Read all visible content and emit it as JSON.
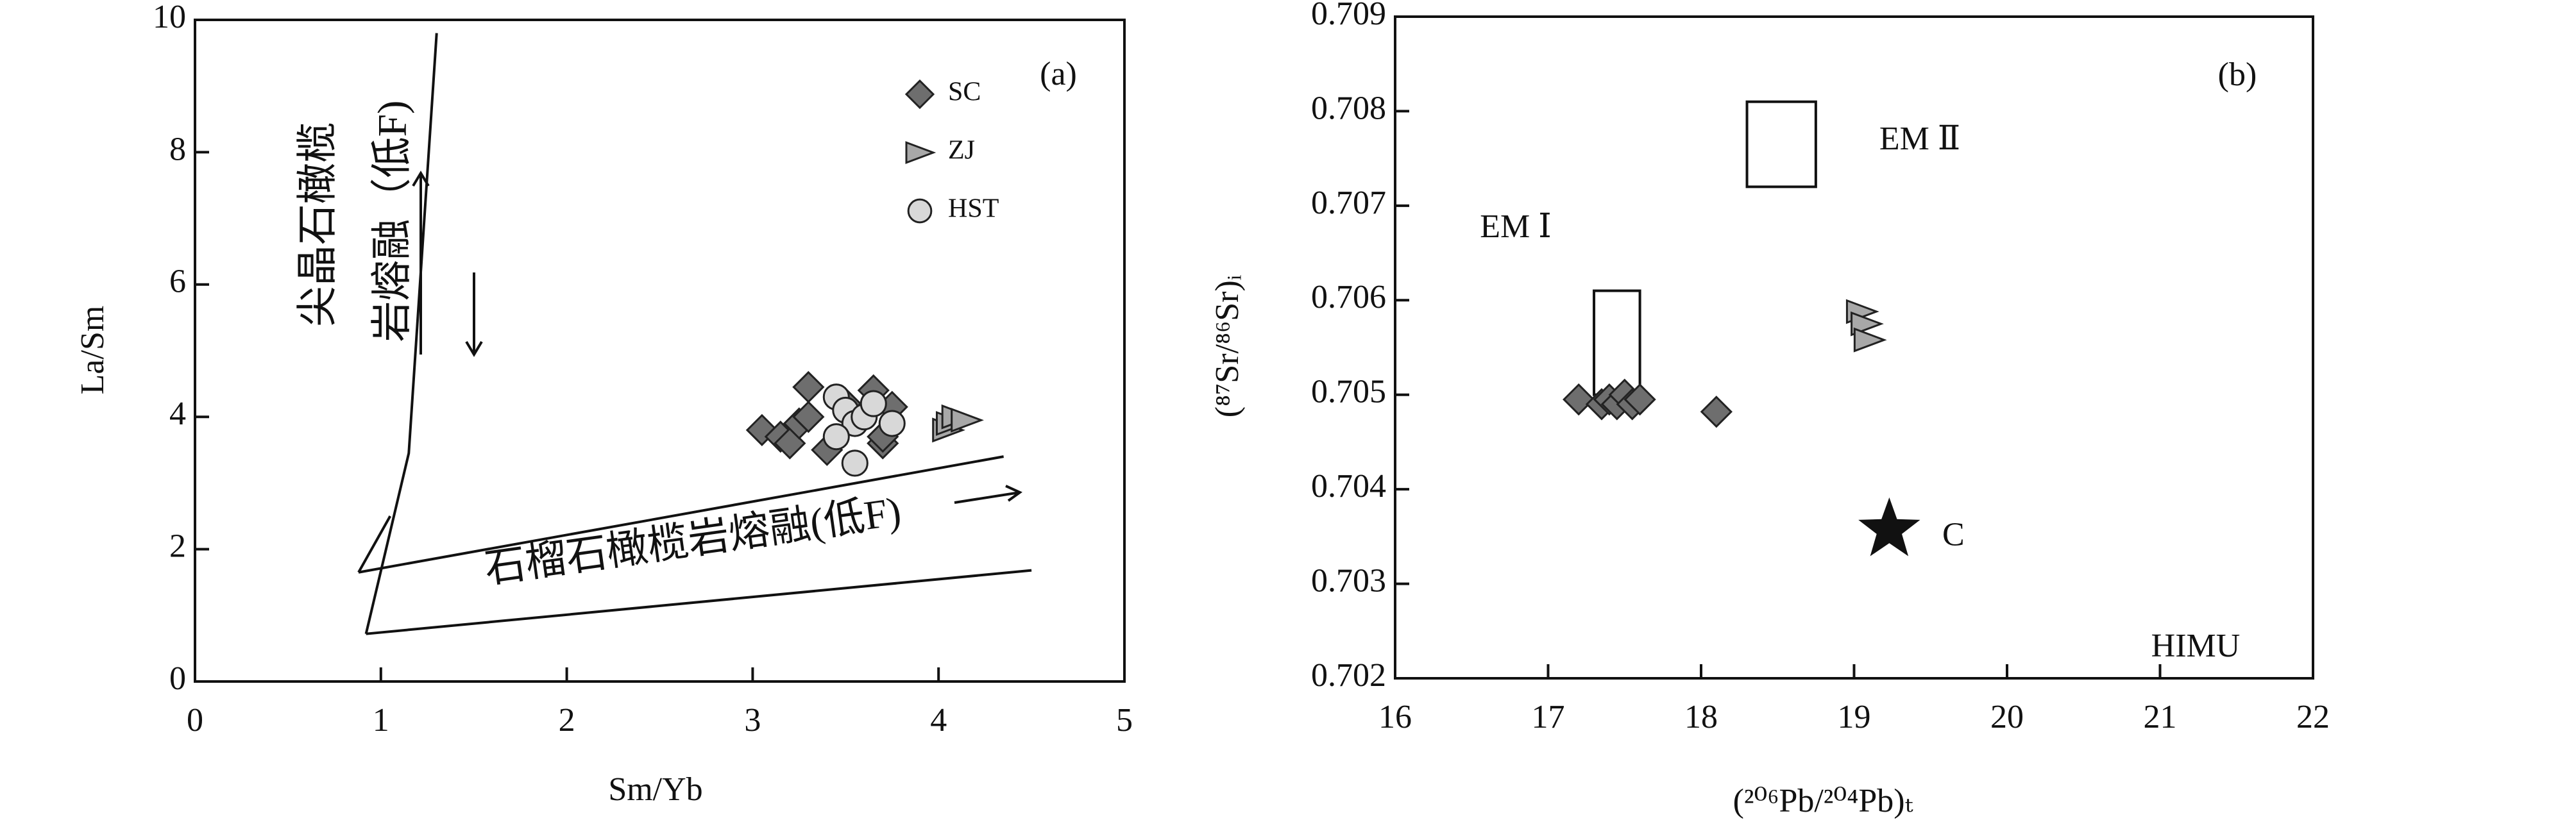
{
  "chart_data": [
    {
      "type": "scatter",
      "panel": "(a)",
      "x_label": "Sm/Yb",
      "y_label": "La/Sm",
      "xlim": [
        0,
        5
      ],
      "ylim": [
        0,
        10
      ],
      "xticks": [
        0,
        1,
        2,
        3,
        4,
        5
      ],
      "yticks": [
        0,
        2,
        4,
        6,
        8,
        10
      ],
      "series": [
        {
          "name": "SC",
          "color": "#6e6e6e",
          "marker": "diamond",
          "x": [
            3.05,
            3.15,
            3.2,
            3.25,
            3.3,
            3.3,
            3.4,
            3.5,
            3.65,
            3.7,
            3.75,
            3.7
          ],
          "values": [
            3.8,
            3.7,
            3.6,
            3.9,
            4.0,
            4.45,
            3.5,
            4.2,
            4.4,
            3.6,
            4.15,
            3.7
          ]
        },
        {
          "name": "ZJ",
          "color": "#a8a8a8",
          "marker": "triangle",
          "x": [
            4.05,
            4.07,
            4.1,
            4.15
          ],
          "values": [
            3.8,
            3.9,
            4.0,
            3.95
          ]
        },
        {
          "name": "HST",
          "color": "#d8d8d8",
          "marker": "circle",
          "x": [
            3.45,
            3.5,
            3.55,
            3.6,
            3.65,
            3.75,
            3.55,
            3.45
          ],
          "values": [
            4.3,
            4.1,
            3.9,
            4.0,
            4.2,
            3.9,
            3.3,
            3.7
          ]
        }
      ],
      "lines": [
        {
          "x": [
            0.88,
            4.35
          ],
          "y": [
            1.65,
            3.4
          ]
        },
        {
          "x": [
            0.92,
            4.5
          ],
          "y": [
            0.72,
            1.68
          ]
        },
        {
          "x": [
            0.92,
            1.15,
            1.3
          ],
          "y": [
            0.72,
            3.45,
            9.8
          ]
        },
        {
          "x": [
            0.88,
            1.05
          ],
          "y": [
            1.65,
            2.5
          ]
        }
      ],
      "annotations": [
        "尖晶石橄榄",
        "岩熔融（低F)",
        "石榴石橄榄岩熔融(低F)"
      ],
      "legend": "top-right"
    },
    {
      "type": "scatter",
      "panel": "(b)",
      "x_label": "(²⁰⁶Pb/²⁰⁴Pb)ₜ",
      "y_label": "(⁸⁷Sr/⁸⁶Sr)ᵢ",
      "xlim": [
        16,
        22
      ],
      "ylim": [
        0.702,
        0.709
      ],
      "xticks": [
        16,
        17,
        18,
        19,
        20,
        21,
        22
      ],
      "yticks": [
        0.702,
        0.703,
        0.704,
        0.705,
        0.706,
        0.707,
        0.708,
        0.709
      ],
      "series": [
        {
          "name": "SC",
          "color": "#6e6e6e",
          "marker": "diamond",
          "x": [
            17.2,
            17.35,
            17.4,
            17.45,
            17.5,
            17.55,
            17.6,
            18.1
          ],
          "values": [
            0.70495,
            0.7049,
            0.70495,
            0.7049,
            0.705,
            0.7049,
            0.70495,
            0.70482
          ]
        },
        {
          "name": "ZJ",
          "color": "#a8a8a8",
          "marker": "triangle",
          "x": [
            19.05,
            19.08,
            19.1
          ],
          "values": [
            0.70588,
            0.70575,
            0.70558
          ]
        },
        {
          "name": "C",
          "color": "#111111",
          "marker": "star",
          "x": [
            19.23
          ],
          "values": [
            0.70357
          ]
        }
      ],
      "regions": [
        {
          "x": [
            17.3,
            17.6
          ],
          "y": [
            0.705,
            0.7061
          ]
        },
        {
          "x": [
            18.3,
            18.75
          ],
          "y": [
            0.7072,
            0.7081
          ]
        }
      ],
      "annotations": [
        "EM Ⅱ",
        "EM Ⅰ",
        "HIMU"
      ]
    }
  ]
}
